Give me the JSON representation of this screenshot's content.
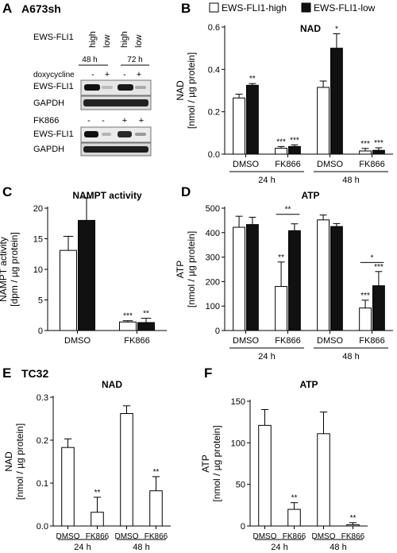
{
  "legend": {
    "high_label": "EWS-FLI1-high",
    "low_label": "EWS-FLI1-low",
    "high_color": "#ffffff",
    "low_color": "#111111"
  },
  "panelA": {
    "letter": "A",
    "cell_line": "A673sh",
    "row_label": "EWS-FLI1",
    "col_levels": [
      "high",
      "low",
      "high",
      "low"
    ],
    "timepoints": [
      "48 h",
      "72 h"
    ],
    "dox_label": "doxycycline",
    "dox_signs": [
      "-",
      "+",
      "-",
      "+"
    ],
    "blot1_labels": [
      "EWS-FLI1",
      "GAPDH"
    ],
    "fk_label": "FK866",
    "fk_signs": [
      "-",
      "-",
      "+",
      "+"
    ],
    "blot2_labels": [
      "EWS-FLI1",
      "GAPDH"
    ]
  },
  "panelE": {
    "letter": "E",
    "cell_line": "TC32"
  },
  "chart_data": [
    {
      "id": "B",
      "type": "bar",
      "title": "NAD",
      "ylabel": "NAD",
      "ylabel2": "[nmol / µg protein]",
      "ylim": [
        0,
        0.6
      ],
      "yticks": [
        "0.0",
        "0.2",
        "0.4",
        "0.6"
      ],
      "categories": [
        "DMSO",
        "FK866",
        "DMSO",
        "FK866"
      ],
      "groups": [
        "24 h",
        "48 h"
      ],
      "series": [
        {
          "name": "EWS-FLI1-high",
          "values": [
            0.265,
            0.028,
            0.315,
            0.015
          ],
          "errors": [
            0.018,
            0.008,
            0.03,
            0.012
          ],
          "sig": [
            "",
            "***",
            "",
            "***"
          ]
        },
        {
          "name": "EWS-FLI1-low",
          "values": [
            0.325,
            0.036,
            0.5,
            0.018
          ],
          "errors": [
            0.008,
            0.008,
            0.068,
            0.012
          ],
          "sig": [
            "**",
            "***",
            "*",
            "***"
          ]
        }
      ],
      "brackets": []
    },
    {
      "id": "C",
      "type": "bar",
      "title": "NAMPT activity",
      "ylabel": "NAMPT activity",
      "ylabel2": "[dpm / µg protein]",
      "ylim": [
        0,
        20
      ],
      "yticks": [
        "0",
        "5",
        "10",
        "15",
        "20"
      ],
      "categories": [
        "DMSO",
        "FK866"
      ],
      "groups": [],
      "series": [
        {
          "name": "EWS-FLI1-high",
          "values": [
            13.1,
            1.4
          ],
          "errors": [
            2.3,
            0.2
          ],
          "sig": [
            "",
            "***"
          ]
        },
        {
          "name": "EWS-FLI1-low",
          "values": [
            18.0,
            1.3
          ],
          "errors": [
            3.7,
            0.7
          ],
          "sig": [
            "",
            "**"
          ]
        }
      ],
      "brackets": []
    },
    {
      "id": "D",
      "type": "bar",
      "title": "ATP",
      "ylabel": "ATP",
      "ylabel2": "[nmol / µg protein]",
      "ylim": [
        0,
        500
      ],
      "yticks": [
        "0",
        "100",
        "200",
        "300",
        "400",
        "500"
      ],
      "categories": [
        "DMSO",
        "FK866",
        "DMSO",
        "FK866"
      ],
      "groups": [
        "24 h",
        "48 h"
      ],
      "series": [
        {
          "name": "EWS-FLI1-high",
          "values": [
            422,
            180,
            452,
            92
          ],
          "errors": [
            45,
            100,
            20,
            32
          ],
          "sig": [
            "",
            "**",
            "",
            "***"
          ]
        },
        {
          "name": "EWS-FLI1-low",
          "values": [
            433,
            408,
            425,
            183
          ],
          "errors": [
            30,
            28,
            12,
            58
          ],
          "sig": [
            "",
            "",
            "",
            "***"
          ]
        }
      ],
      "brackets": [
        {
          "cat": 1,
          "y": 475,
          "label": "**"
        },
        {
          "cat": 3,
          "y": 278,
          "label": "*"
        }
      ]
    },
    {
      "id": "E",
      "type": "bar",
      "title": "NAD",
      "ylabel": "NAD",
      "ylabel2": "[nmol / µg protein]",
      "ylim": [
        0,
        0.3
      ],
      "yticks": [
        "0.0",
        "0.1",
        "0.2",
        "0.3"
      ],
      "categories": [
        "DMSO",
        "FK866",
        "DMSO",
        "FK866"
      ],
      "groups": [
        "24 h",
        "48 h"
      ],
      "series": [
        {
          "name": "",
          "values": [
            0.183,
            0.032,
            0.262,
            0.082
          ],
          "errors": [
            0.02,
            0.035,
            0.018,
            0.033
          ],
          "sig": [
            "",
            "**",
            "",
            "**"
          ]
        }
      ],
      "brackets": []
    },
    {
      "id": "F",
      "type": "bar",
      "title": "ATP",
      "ylabel": "ATP",
      "ylabel2": "[nmol / µg protein]",
      "ylim": [
        0,
        150
      ],
      "yticks": [
        "0",
        "50",
        "100",
        "150"
      ],
      "categories": [
        "DMSO",
        "FK866",
        "DMSO",
        "FK866"
      ],
      "groups": [
        "24 h",
        "48 h"
      ],
      "series": [
        {
          "name": "",
          "values": [
            121,
            20,
            111,
            1.5
          ],
          "errors": [
            19,
            8,
            26,
            2.5
          ],
          "sig": [
            "",
            "**",
            "",
            "**"
          ]
        }
      ],
      "brackets": []
    }
  ]
}
